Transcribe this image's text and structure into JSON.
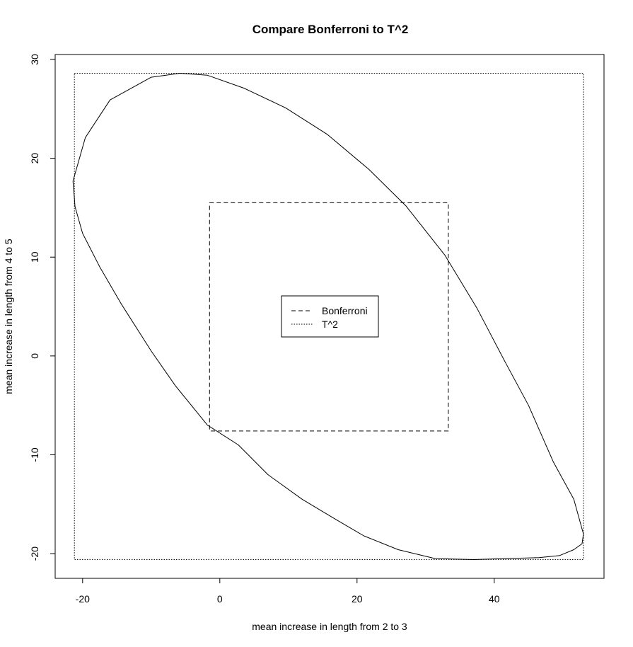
{
  "chart_data": {
    "type": "line",
    "title": "Compare Bonferroni to T^2",
    "xlabel": "mean increase in length from 2 to 3",
    "ylabel": "mean increase in length from 4 to 5",
    "xlim": [
      -24,
      56
    ],
    "ylim": [
      -22.5,
      30.5
    ],
    "xticks": [
      -20,
      0,
      20,
      40
    ],
    "yticks": [
      -20,
      -10,
      0,
      10,
      20,
      30
    ],
    "legend": {
      "placement": "center",
      "entries": [
        {
          "label": "Bonferroni",
          "linestyle": "dashed"
        },
        {
          "label": "T^2",
          "linestyle": "dotted"
        }
      ]
    },
    "series": [
      {
        "name": "T^2",
        "shape": "ellipse",
        "x": [
          -21.4,
          -19.6,
          -16.0,
          -10.0,
          -5.8,
          -1.8,
          3.5,
          9.6,
          15.7,
          21.7,
          27.1,
          32.8,
          37.5,
          41.5,
          45.0,
          48.6,
          51.6,
          53.0,
          52.8,
          51.6,
          49.5,
          46.5,
          41.5,
          37.0,
          31.4,
          26.0,
          21.0,
          16.8,
          12.0,
          7.0,
          2.7,
          -1.8,
          -6.5,
          -10.0,
          -14.4,
          -17.5,
          -20.0,
          -21.1,
          -21.4
        ],
        "y": [
          17.7,
          22.1,
          25.9,
          28.2,
          28.6,
          28.4,
          27.1,
          25.1,
          22.4,
          18.9,
          15.2,
          10.2,
          4.8,
          -0.5,
          -5.0,
          -10.7,
          -14.5,
          -18.0,
          -19.0,
          -19.6,
          -20.2,
          -20.4,
          -20.5,
          -20.6,
          -20.5,
          -19.6,
          -18.2,
          -16.5,
          -14.5,
          -12.0,
          -9.0,
          -7.0,
          -3.0,
          0.5,
          5.3,
          9.0,
          12.4,
          15.1,
          17.7
        ]
      },
      {
        "name": "T^2",
        "shape": "rectangle",
        "x": [
          -21.2,
          53.0
        ],
        "y": [
          -20.6,
          28.6
        ]
      },
      {
        "name": "Bonferroni",
        "shape": "rectangle",
        "x": [
          -1.5,
          33.3
        ],
        "y": [
          -7.6,
          15.5
        ]
      }
    ]
  }
}
